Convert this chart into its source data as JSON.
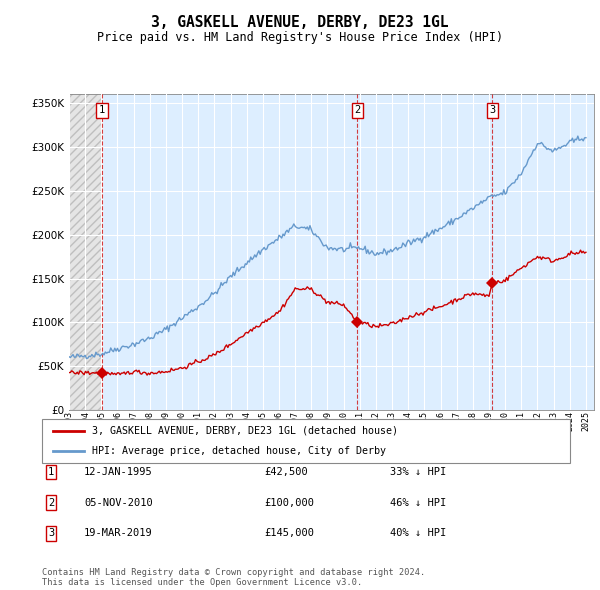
{
  "title": "3, GASKELL AVENUE, DERBY, DE23 1GL",
  "subtitle": "Price paid vs. HM Land Registry's House Price Index (HPI)",
  "footer": "Contains HM Land Registry data © Crown copyright and database right 2024.\nThis data is licensed under the Open Government Licence v3.0.",
  "legend_label_red": "3, GASKELL AVENUE, DERBY, DE23 1GL (detached house)",
  "legend_label_blue": "HPI: Average price, detached house, City of Derby",
  "transactions": [
    {
      "num": 1,
      "date": "12-JAN-1995",
      "price": 42500,
      "pct": "33%",
      "year": 1995.04
    },
    {
      "num": 2,
      "date": "05-NOV-2010",
      "price": 100000,
      "pct": "46%",
      "year": 2010.85
    },
    {
      "num": 3,
      "date": "19-MAR-2019",
      "price": 145000,
      "pct": "40%",
      "year": 2019.21
    }
  ],
  "ylim": [
    0,
    360000
  ],
  "yticks": [
    0,
    50000,
    100000,
    150000,
    200000,
    250000,
    300000,
    350000
  ],
  "xlim_start": 1993.0,
  "xlim_end": 2025.5,
  "hpi_color": "#6699cc",
  "red_color": "#cc0000",
  "plot_bg": "#ddeeff",
  "grid_color": "#ffffff",
  "hpi_anchors_years": [
    1993,
    1994,
    1995,
    1996,
    1997,
    1998,
    1999,
    2000,
    2001,
    2002,
    2003,
    2004,
    2005,
    2006,
    2007,
    2008,
    2009,
    2010,
    2011,
    2012,
    2013,
    2014,
    2015,
    2016,
    2017,
    2018,
    2019,
    2020,
    2021,
    2022,
    2023,
    2024,
    2025
  ],
  "hpi_anchors_prices": [
    60000,
    62000,
    64000,
    70000,
    75000,
    82000,
    92000,
    105000,
    118000,
    133000,
    152000,
    168000,
    183000,
    196000,
    210000,
    205000,
    185000,
    183000,
    185000,
    178000,
    182000,
    190000,
    198000,
    207000,
    218000,
    230000,
    242000,
    248000,
    270000,
    305000,
    295000,
    305000,
    312000
  ],
  "red_anchors_years": [
    1993,
    1995.04,
    1996,
    1997,
    1998,
    1999,
    2000,
    2001,
    2002,
    2003,
    2004,
    2005,
    2006,
    2007,
    2008,
    2009,
    2010.0,
    2010.85,
    2011,
    2012,
    2013,
    2014,
    2015,
    2016,
    2017,
    2018,
    2019.0,
    2019.21,
    2020,
    2021,
    2022,
    2023,
    2024,
    2025
  ],
  "red_anchors_prices": [
    42500,
    42500,
    40000,
    44000,
    42000,
    44000,
    48000,
    55000,
    63000,
    75000,
    88000,
    100000,
    112000,
    138000,
    138000,
    123000,
    120000,
    100000,
    100000,
    95000,
    98000,
    106000,
    112000,
    118000,
    126000,
    133000,
    130000,
    145000,
    148000,
    162000,
    175000,
    170000,
    178000,
    180000
  ]
}
